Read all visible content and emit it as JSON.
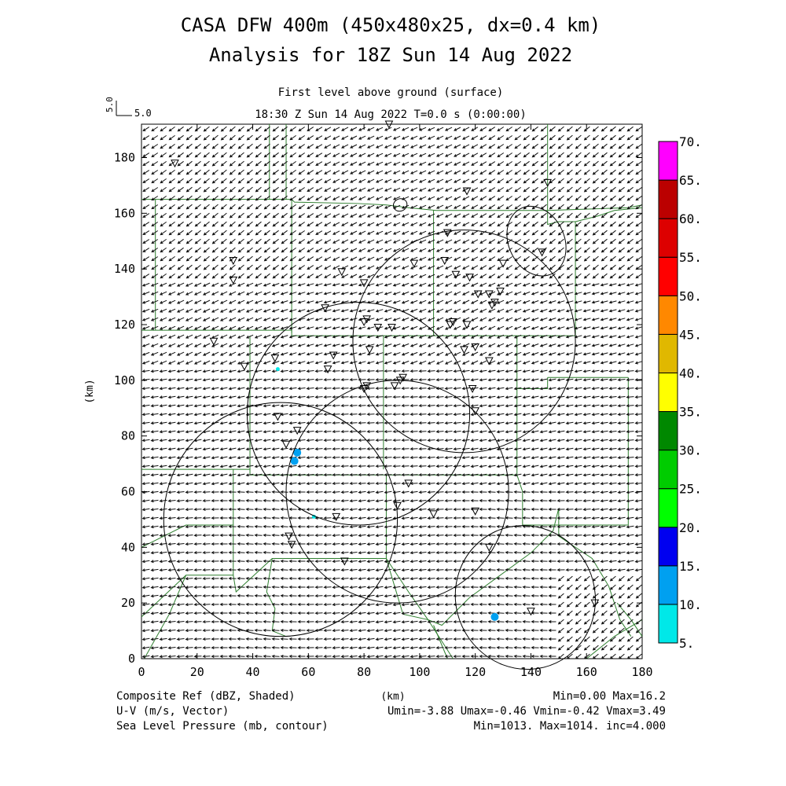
{
  "header": {
    "title_line1": "CASA DFW 400m (450x480x25, dx=0.4 km)",
    "title_line2": "Analysis for 18Z Sun 14 Aug 2022",
    "level": "First level above ground (surface)",
    "time": "18:30 Z Sun 14 Aug 2022    T=0.0 s (0:00:00)",
    "ref_vector_label": "5.0",
    "ref_vector_value": "5.0"
  },
  "axes": {
    "ylabel": "(km)",
    "xlabel": "(km)"
  },
  "footer": {
    "field1": "Composite Ref (dBZ, Shaded)",
    "field1_stats": "Min=0.00 Max=16.2",
    "field2": "U-V (m/s, Vector)",
    "field2_stats": "Umin=-3.88 Umax=-0.46 Vmin=-0.42 Vmax=3.49",
    "field3": "Sea Level Pressure (mb, contour)",
    "field3_stats": "Min=1013. Max=1014. inc=4.000"
  },
  "chart_data": {
    "type": "map",
    "x_ticks": [
      "0",
      "20",
      "40",
      "60",
      "80",
      "100",
      "120",
      "140",
      "160",
      "180"
    ],
    "y_ticks": [
      "0",
      "20",
      "40",
      "60",
      "80",
      "100",
      "120",
      "140",
      "160",
      "180"
    ],
    "xlim": [
      0,
      180
    ],
    "ylim": [
      0,
      192
    ],
    "colorbar": {
      "labels": [
        "5.",
        "10.",
        "15.",
        "20.",
        "25.",
        "30.",
        "35.",
        "40.",
        "45.",
        "50.",
        "55.",
        "60.",
        "65.",
        "70."
      ],
      "colors": [
        "#00e8e8",
        "#00a0f0",
        "#0000f0",
        "#00ff00",
        "#00cc00",
        "#008800",
        "#ffff00",
        "#e0b800",
        "#ff8800",
        "#ff0000",
        "#dd0000",
        "#bb0000",
        "#ff00ff"
      ]
    },
    "radar_rings": [
      {
        "cx": 50,
        "cy": 50,
        "r": 42
      },
      {
        "cx": 78,
        "cy": 88,
        "r": 40
      },
      {
        "cx": 92,
        "cy": 60,
        "r": 40
      },
      {
        "cx": 116,
        "cy": 114,
        "r": 40
      }
    ],
    "pressure_contours": [
      {
        "cx": 142,
        "cy": 150,
        "rx": 10,
        "ry": 13
      },
      {
        "cx": 93,
        "cy": 163,
        "rx": 2.5,
        "ry": 2.2
      },
      {
        "cx": 138,
        "cy": 22,
        "rx": 25,
        "ry": 26
      }
    ],
    "reflectivity_cells": [
      {
        "x": 127,
        "y": 15,
        "dbz": 10
      },
      {
        "x": 56,
        "y": 74,
        "dbz": 10
      },
      {
        "x": 55,
        "y": 71,
        "dbz": 10
      },
      {
        "x": 49,
        "y": 104,
        "dbz": 5
      },
      {
        "x": 62,
        "y": 51,
        "dbz": 5
      }
    ],
    "stations": [
      [
        12,
        178
      ],
      [
        33,
        143
      ],
      [
        33,
        136
      ],
      [
        26,
        114
      ],
      [
        37,
        105
      ],
      [
        48,
        108
      ],
      [
        49,
        87
      ],
      [
        52,
        77
      ],
      [
        56,
        82
      ],
      [
        66,
        126
      ],
      [
        72,
        139
      ],
      [
        69,
        109
      ],
      [
        67,
        104
      ],
      [
        80,
        135
      ],
      [
        80,
        121
      ],
      [
        81,
        122
      ],
      [
        85,
        119
      ],
      [
        90,
        119
      ],
      [
        82,
        111
      ],
      [
        80,
        97
      ],
      [
        81,
        98
      ],
      [
        91,
        98
      ],
      [
        94,
        101
      ],
      [
        93,
        100
      ],
      [
        98,
        142
      ],
      [
        109,
        143
      ],
      [
        110,
        153
      ],
      [
        113,
        138
      ],
      [
        118,
        137
      ],
      [
        117,
        168
      ],
      [
        130,
        142
      ],
      [
        121,
        131
      ],
      [
        125,
        131
      ],
      [
        126,
        127
      ],
      [
        127,
        128
      ],
      [
        129,
        132
      ],
      [
        112,
        121
      ],
      [
        111,
        120
      ],
      [
        117,
        120
      ],
      [
        116,
        111
      ],
      [
        120,
        112
      ],
      [
        125,
        107
      ],
      [
        119,
        97
      ],
      [
        120,
        89
      ],
      [
        144,
        146
      ],
      [
        146,
        171
      ],
      [
        89,
        192
      ],
      [
        96,
        63
      ],
      [
        92,
        55
      ],
      [
        105,
        52
      ],
      [
        120,
        53
      ],
      [
        125,
        40
      ],
      [
        70,
        51
      ],
      [
        53,
        44
      ],
      [
        54,
        41
      ],
      [
        73,
        35
      ],
      [
        140,
        17
      ],
      [
        163,
        20
      ]
    ],
    "wind": {
      "u_range": [
        -3.88,
        -0.46
      ],
      "v_range": [
        -0.42,
        3.49
      ]
    }
  }
}
